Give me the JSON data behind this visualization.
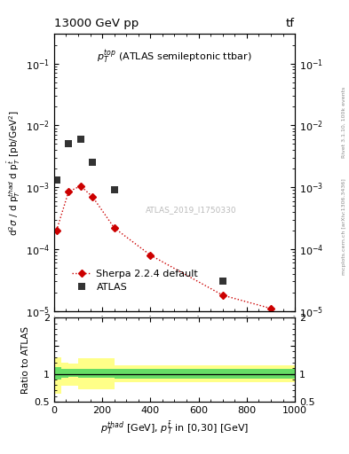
{
  "title_left": "13000 GeV pp",
  "title_right": "tf",
  "plot_label": "$p_T^{top}$ (ATLAS semileptonic ttbar)",
  "watermark": "ATLAS_2019_I1750330",
  "right_label1": "Rivet 3.1.10, 100k events",
  "right_label2": "mcplots.cern.ch [arXiv:1306.3436]",
  "atlas_x": [
    10,
    60,
    110,
    160,
    250,
    700
  ],
  "atlas_y": [
    0.0013,
    0.005,
    0.006,
    0.0025,
    0.0009,
    3e-05
  ],
  "sherpa_x": [
    10,
    60,
    110,
    160,
    250,
    400,
    700,
    900
  ],
  "sherpa_y": [
    0.0002,
    0.00085,
    0.00105,
    0.0007,
    0.00022,
    8e-05,
    1.8e-05,
    1.1e-05
  ],
  "ratio_x": [
    0,
    30,
    60,
    100,
    250,
    1000
  ],
  "ratio_green_upper": [
    1.12,
    1.09,
    1.08,
    1.08,
    1.09,
    1.09
  ],
  "ratio_green_lower": [
    0.9,
    0.93,
    0.94,
    0.93,
    0.92,
    0.92
  ],
  "ratio_yellow_upper": [
    1.3,
    1.2,
    1.18,
    1.28,
    1.15,
    1.15
  ],
  "ratio_yellow_lower": [
    0.65,
    0.78,
    0.78,
    0.72,
    0.85,
    0.85
  ],
  "xlim": [
    0,
    1000
  ],
  "ylim_main": [
    1e-05,
    0.3
  ],
  "ylim_ratio": [
    0.5,
    2.0
  ],
  "atlas_color": "#333333",
  "sherpa_color": "#cc0000",
  "green_color": "#66dd66",
  "yellow_color": "#ffff88",
  "bg_color": "#ffffff"
}
